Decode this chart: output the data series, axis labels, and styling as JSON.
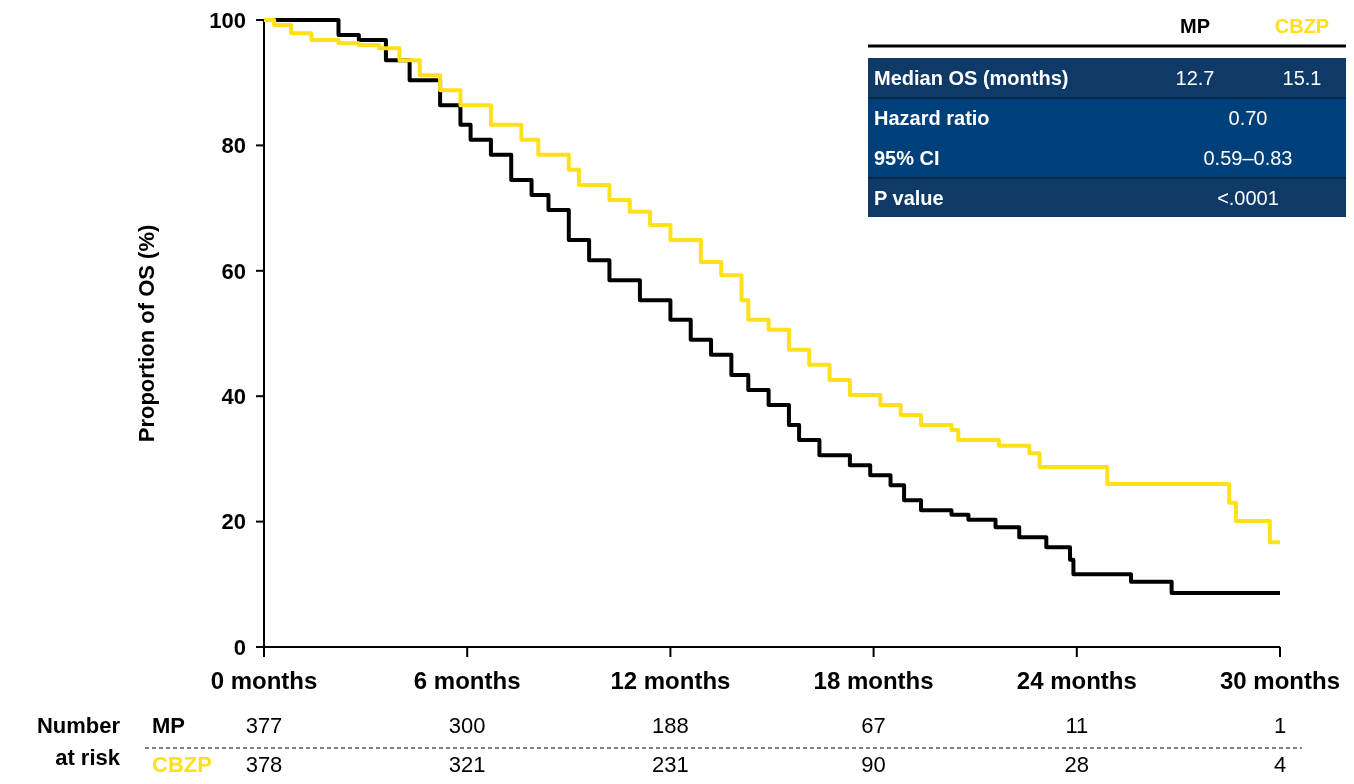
{
  "chart_data": {
    "type": "step",
    "ylabel": "Proportion of OS (%)",
    "xlim": [
      0,
      30
    ],
    "ylim": [
      0,
      100
    ],
    "xticks": [
      {
        "value": 0,
        "label": "0 months"
      },
      {
        "value": 6,
        "label": "6 months"
      },
      {
        "value": 12,
        "label": "12 months"
      },
      {
        "value": 18,
        "label": "18 months"
      },
      {
        "value": 24,
        "label": "24 months"
      },
      {
        "value": 30,
        "label": "30 months"
      }
    ],
    "yticks": [
      0,
      20,
      40,
      60,
      80,
      100
    ],
    "grid": false,
    "legend": "top right",
    "line_style": "solid",
    "series": [
      {
        "name": "MP",
        "color": "#000000",
        "x": [
          0,
          1.06,
          2.2,
          2.8,
          3.6,
          4.3,
          5.2,
          5.8,
          6.1,
          6.7,
          7.3,
          7.9,
          8.4,
          9.0,
          9.6,
          10.2,
          11.1,
          12.0,
          12.6,
          13.2,
          13.8,
          14.3,
          14.9,
          15.5,
          15.8,
          16.4,
          17.3,
          17.9,
          18.5,
          18.9,
          19.4,
          20.3,
          20.8,
          21.6,
          22.3,
          23.1,
          23.8,
          23.9,
          25.6,
          26.8,
          30
        ],
        "values": [
          100,
          100,
          97.6,
          96.8,
          93.6,
          90.4,
          86.4,
          83.3,
          80.9,
          78.5,
          74.5,
          72.1,
          69.7,
          64.9,
          61.7,
          58.5,
          55.3,
          52.2,
          49.0,
          46.6,
          43.4,
          41.0,
          38.6,
          35.4,
          33.0,
          30.6,
          29.0,
          27.4,
          25.8,
          23.4,
          21.8,
          21.1,
          20.3,
          19.1,
          17.5,
          15.9,
          13.9,
          11.6,
          10.4,
          8.6,
          8.6
        ]
      },
      {
        "name": "CBZP",
        "color": "#ffe01b",
        "x": [
          0,
          0.3,
          0.8,
          1.4,
          2.2,
          2.8,
          3.4,
          4.0,
          4.6,
          5.2,
          5.8,
          6.7,
          7.6,
          8.1,
          9.0,
          9.3,
          10.2,
          10.8,
          11.4,
          12.0,
          12.9,
          13.5,
          14.1,
          14.3,
          14.9,
          15.5,
          16.1,
          16.7,
          17.3,
          18.2,
          18.8,
          19.4,
          20.3,
          20.5,
          21.7,
          22.6,
          22.9,
          24.9,
          28.5,
          28.7,
          29.7,
          30
        ],
        "values": [
          100,
          99.2,
          97.9,
          96.8,
          96.3,
          96.0,
          95.5,
          93.6,
          91.2,
          88.8,
          86.4,
          83.3,
          80.9,
          78.5,
          76.1,
          73.7,
          71.3,
          69.4,
          67.3,
          64.9,
          61.4,
          59.3,
          55.3,
          52.2,
          50.6,
          47.4,
          45.0,
          42.6,
          40.2,
          38.6,
          37.0,
          35.4,
          34.6,
          33.0,
          32.1,
          30.9,
          28.7,
          26.0,
          23.0,
          20.1,
          16.7,
          16.7
        ]
      }
    ],
    "annotations": [
      "Median OS (months)",
      "12.7",
      "15.1",
      "Hazard ratio",
      "0.70",
      "95% CI",
      "0.59–0.83",
      "P value",
      "<.0001",
      "Number at risk",
      "MP",
      "377",
      "300",
      "188",
      "67",
      "11",
      "1",
      "CBZP",
      "378",
      "321",
      "231",
      "90",
      "28",
      "4"
    ]
  }
}
